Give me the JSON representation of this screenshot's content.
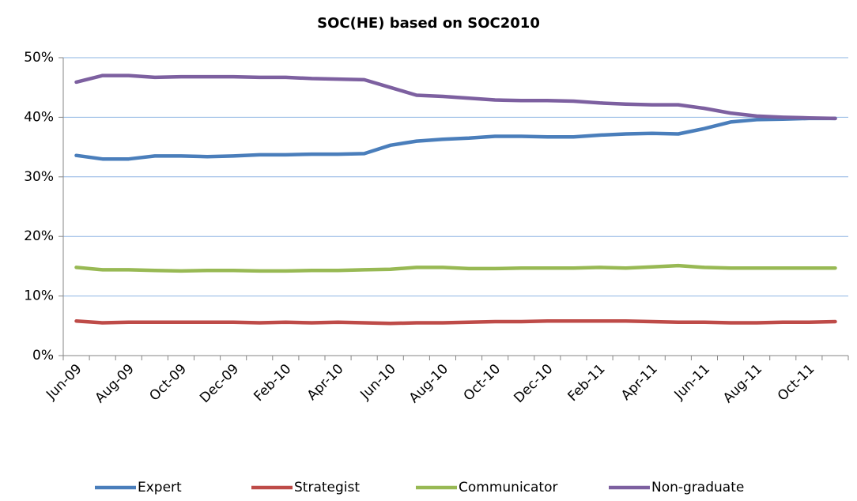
{
  "chart_data": {
    "type": "line",
    "title": "SOC(HE) based on SOC2010",
    "categories": [
      "Jun-09",
      null,
      "Aug-09",
      null,
      "Oct-09",
      null,
      "Dec-09",
      null,
      "Feb-10",
      null,
      "Apr-10",
      null,
      "Jun-10",
      null,
      "Aug-10",
      null,
      "Oct-10",
      null,
      "Dec-10",
      null,
      "Feb-11",
      null,
      "Apr-11",
      null,
      "Jun-11",
      null,
      "Aug-11",
      null,
      "Oct-11",
      null
    ],
    "series": [
      {
        "name": "Expert",
        "color": "#4a7ebb",
        "values": [
          33.6,
          33.0,
          33.0,
          33.5,
          33.5,
          33.4,
          33.5,
          33.7,
          33.7,
          33.8,
          33.8,
          33.9,
          35.3,
          36.0,
          36.3,
          36.5,
          36.8,
          36.8,
          36.7,
          36.7,
          37.0,
          37.2,
          37.3,
          37.2,
          38.1,
          39.2,
          39.6,
          39.7,
          39.8,
          39.8
        ]
      },
      {
        "name": "Strategist",
        "color": "#be4b48",
        "values": [
          5.8,
          5.5,
          5.6,
          5.6,
          5.6,
          5.6,
          5.6,
          5.5,
          5.6,
          5.5,
          5.6,
          5.5,
          5.4,
          5.5,
          5.5,
          5.6,
          5.7,
          5.7,
          5.8,
          5.8,
          5.8,
          5.8,
          5.7,
          5.6,
          5.6,
          5.5,
          5.5,
          5.6,
          5.6,
          5.7
        ]
      },
      {
        "name": "Communicator",
        "color": "#98b954",
        "values": [
          14.8,
          14.4,
          14.4,
          14.3,
          14.2,
          14.3,
          14.3,
          14.2,
          14.2,
          14.3,
          14.3,
          14.4,
          14.5,
          14.8,
          14.8,
          14.6,
          14.6,
          14.7,
          14.7,
          14.7,
          14.8,
          14.7,
          14.9,
          15.1,
          14.8,
          14.7,
          14.7,
          14.7,
          14.7,
          14.7
        ]
      },
      {
        "name": "Non-graduate",
        "color": "#7d60a0",
        "values": [
          45.9,
          47.0,
          47.0,
          46.7,
          46.8,
          46.8,
          46.8,
          46.7,
          46.7,
          46.5,
          46.4,
          46.3,
          45.0,
          43.7,
          43.5,
          43.2,
          42.9,
          42.8,
          42.8,
          42.7,
          42.4,
          42.2,
          42.1,
          42.1,
          41.5,
          40.7,
          40.2,
          40.0,
          39.9,
          39.8
        ]
      }
    ],
    "ylim": [
      0,
      50
    ],
    "yticks": [
      {
        "value": 0,
        "label": "0%"
      },
      {
        "value": 10,
        "label": "10%"
      },
      {
        "value": 20,
        "label": "20%"
      },
      {
        "value": 30,
        "label": "30%"
      },
      {
        "value": 40,
        "label": "40%"
      },
      {
        "value": 50,
        "label": "50%"
      }
    ],
    "grid": true,
    "legend": "bottom"
  }
}
